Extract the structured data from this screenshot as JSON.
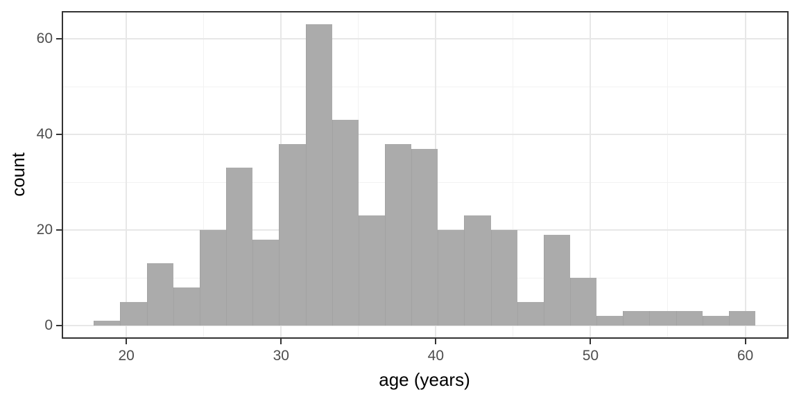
{
  "figure": {
    "background": "#ffffff"
  },
  "chart_data": {
    "type": "bar",
    "subtype": "histogram",
    "title": "",
    "xlabel": "age (years)",
    "ylabel": "count",
    "bins": {
      "start": 17.9,
      "width": 1.71
    },
    "counts": [
      1,
      5,
      13,
      8,
      20,
      33,
      18,
      38,
      63,
      43,
      23,
      38,
      37,
      20,
      23,
      20,
      5,
      19,
      10,
      2,
      3,
      3,
      3,
      2,
      3
    ],
    "x_ticks": [
      20,
      30,
      40,
      50,
      60
    ],
    "x_minor_ticks": [
      25,
      35,
      45,
      55
    ],
    "y_ticks": [
      0,
      20,
      40,
      60
    ],
    "y_minor_ticks": [
      10,
      30,
      50
    ],
    "xlim": [
      15.8,
      62.8
    ],
    "ylim": [
      -2.75,
      65.8
    ],
    "grid": true,
    "legend_position": "none",
    "colors": {
      "bar_fill": "#ababab",
      "panel_background": "#ffffff",
      "panel_border": "#333333",
      "grid_major": "#e7e7e7",
      "grid_minor": "#f2f2f2",
      "tick_mark": "#333333",
      "tick_label": "#4d4d4d",
      "axis_title": "#000000"
    }
  }
}
